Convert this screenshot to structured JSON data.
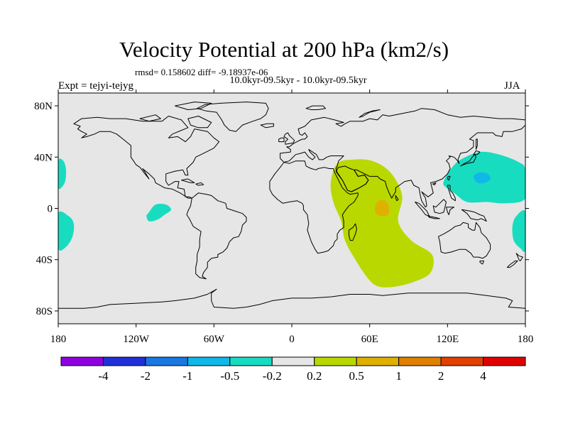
{
  "chart_data": {
    "type": "heatmap",
    "title": "Velocity Potential at 200 hPa (km2/s)",
    "stats_text": "rmsd= 0.158602 diff= -9.18937e-06",
    "subtitle": "10.0kyr-09.5kyr - 10.0kyr-09.5kyr",
    "left_label": "Expt = tejyi-tejyg",
    "right_label": "JJA",
    "xlim": [
      -180,
      180
    ],
    "ylim": [
      -90,
      90
    ],
    "x_ticks": [
      {
        "value": -180,
        "label": "180"
      },
      {
        "value": -120,
        "label": "120W"
      },
      {
        "value": -60,
        "label": "60W"
      },
      {
        "value": 0,
        "label": "0"
      },
      {
        "value": 60,
        "label": "60E"
      },
      {
        "value": 120,
        "label": "120E"
      },
      {
        "value": 180,
        "label": "180"
      }
    ],
    "y_ticks": [
      {
        "value": 80,
        "label": "80N"
      },
      {
        "value": 40,
        "label": "40N"
      },
      {
        "value": 0,
        "label": "0"
      },
      {
        "value": -40,
        "label": "40S"
      },
      {
        "value": -80,
        "label": "80S"
      }
    ],
    "colorbar": {
      "colors": [
        "#8f00e0",
        "#2030d8",
        "#1878e0",
        "#10b8e8",
        "#18dcc0",
        "#e6e6e6",
        "#b8d800",
        "#e0b000",
        "#e08000",
        "#e04000",
        "#e00000"
      ],
      "labels": [
        "-4",
        "-2",
        "-1",
        "-0.5",
        "-0.2",
        "0.2",
        "0.5",
        "1",
        "2",
        "4"
      ]
    },
    "regions": [
      {
        "name": "western-pacific-negative",
        "level": "-0.2",
        "color": "#18dcc0",
        "points": [
          [
            117,
            21
          ],
          [
            122,
            30
          ],
          [
            130,
            38
          ],
          [
            145,
            44
          ],
          [
            160,
            42
          ],
          [
            175,
            36
          ],
          [
            180,
            30
          ],
          [
            180,
            8
          ],
          [
            165,
            4
          ],
          [
            150,
            5
          ],
          [
            135,
            5
          ],
          [
            125,
            12
          ],
          [
            118,
            17
          ]
        ]
      },
      {
        "name": "western-pacific-core",
        "level": "-0.5",
        "color": "#10b8e8",
        "points": [
          [
            140,
            25
          ],
          [
            145,
            28
          ],
          [
            151,
            27
          ],
          [
            153,
            23
          ],
          [
            149,
            20
          ],
          [
            143,
            20
          ]
        ]
      },
      {
        "name": "central-pacific-negative",
        "level": "-0.2",
        "color": "#18dcc0",
        "points": [
          [
            -110,
            -3
          ],
          [
            -105,
            3
          ],
          [
            -97,
            3
          ],
          [
            -93,
            -1
          ],
          [
            -98,
            -5
          ],
          [
            -104,
            -9
          ],
          [
            -110,
            -10
          ],
          [
            -112,
            -6
          ]
        ]
      },
      {
        "name": "dateline-north-negative",
        "level": "-0.2",
        "color": "#18dcc0",
        "points": [
          [
            -180,
            37
          ],
          [
            -176,
            37
          ],
          [
            -174,
            30
          ],
          [
            -175,
            20
          ],
          [
            -180,
            16
          ]
        ]
      },
      {
        "name": "dateline-south-negative",
        "level": "-0.2",
        "color": "#18dcc0",
        "points": [
          [
            -180,
            -4
          ],
          [
            -172,
            -6
          ],
          [
            -168,
            -12
          ],
          [
            -169,
            -22
          ],
          [
            -174,
            -30
          ],
          [
            -180,
            -31
          ]
        ]
      },
      {
        "name": "western-pacific-south-negative",
        "level": "-0.2",
        "color": "#18dcc0",
        "points": [
          [
            180,
            -3
          ],
          [
            173,
            -6
          ],
          [
            170,
            -14
          ],
          [
            171,
            -25
          ],
          [
            176,
            -31
          ],
          [
            180,
            -32
          ]
        ]
      },
      {
        "name": "indian-ocean-positive",
        "level": "0.2",
        "color": "#b8d800",
        "points": [
          [
            35,
            35
          ],
          [
            47,
            38
          ],
          [
            62,
            37
          ],
          [
            76,
            28
          ],
          [
            85,
            10
          ],
          [
            82,
            -10
          ],
          [
            92,
            -25
          ],
          [
            108,
            -36
          ],
          [
            107,
            -50
          ],
          [
            95,
            -57
          ],
          [
            80,
            -61
          ],
          [
            67,
            -61
          ],
          [
            59,
            -55
          ],
          [
            49,
            -40
          ],
          [
            41,
            -25
          ],
          [
            38,
            -10
          ],
          [
            32,
            5
          ],
          [
            30,
            20
          ]
        ]
      },
      {
        "name": "indian-ocean-core",
        "level": "0.5",
        "color": "#e0b000",
        "points": [
          [
            64,
            1
          ],
          [
            67,
            6
          ],
          [
            72,
            6
          ],
          [
            75,
            1
          ],
          [
            74,
            -5
          ],
          [
            69,
            -6
          ],
          [
            65,
            -4
          ]
        ]
      }
    ]
  }
}
